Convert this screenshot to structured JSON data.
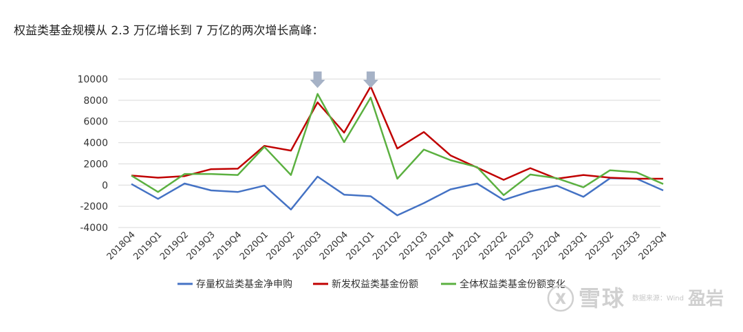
{
  "heading": "权益类基金规模从 2.3 万亿增长到 7 万亿的两次增长高峰：",
  "watermark": {
    "brand": "雪球",
    "source": "数据来源：Wind",
    "author": "盈岩"
  },
  "colors": {
    "series": [
      "#4472c4",
      "#c00000",
      "#5bb040"
    ],
    "arrow": "#a6b2c6",
    "grid": "#d9d9d9"
  },
  "chart_data": {
    "type": "line",
    "categories": [
      "2018Q4",
      "2019Q1",
      "2019Q2",
      "2019Q3",
      "2019Q4",
      "2020Q1",
      "2020Q2",
      "2020Q3",
      "2020Q4",
      "2021Q1",
      "2021Q2",
      "2021Q3",
      "2021Q4",
      "2022Q1",
      "2022Q2",
      "2022Q3",
      "2022Q4",
      "2023Q1",
      "2023Q2",
      "2023Q3",
      "2023Q4"
    ],
    "ylim": [
      -4000,
      10000
    ],
    "yticks": [
      10000,
      8000,
      6000,
      4000,
      2000,
      0,
      -2000,
      -4000
    ],
    "grid": true,
    "legend_position": "bottom",
    "highlight_categories": [
      "2020Q3",
      "2021Q1"
    ],
    "series": [
      {
        "name": "存量权益类基金净申购",
        "values": [
          100,
          -1300,
          150,
          -500,
          -650,
          -50,
          -2300,
          800,
          -900,
          -1050,
          -2850,
          -1700,
          -400,
          150,
          -1400,
          -600,
          -50,
          -1100,
          650,
          600,
          -500
        ]
      },
      {
        "name": "新发权益类基金份额",
        "values": [
          900,
          700,
          850,
          1500,
          1550,
          3700,
          3250,
          7800,
          4950,
          9300,
          3450,
          5000,
          2800,
          1650,
          500,
          1600,
          600,
          950,
          700,
          600,
          600
        ]
      },
      {
        "name": "全体权益类基金份额变化",
        "values": [
          900,
          -650,
          1050,
          1050,
          950,
          3600,
          950,
          8600,
          4050,
          8250,
          600,
          3350,
          2350,
          1700,
          -950,
          1000,
          650,
          -200,
          1400,
          1200,
          100
        ]
      }
    ]
  }
}
